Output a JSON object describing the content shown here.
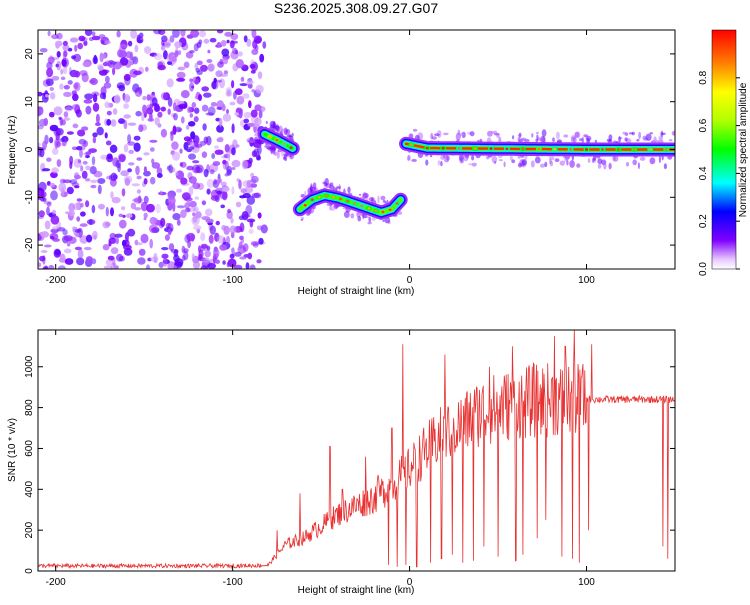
{
  "title": "S236.2025.308.09.27.G07",
  "chart_data": [
    {
      "type": "heatmap",
      "name": "spectrogram",
      "xlabel": "Height of straight line (km)",
      "ylabel": "Frequency (Hz)",
      "xlim": [
        -210,
        150
      ],
      "ylim": [
        -25,
        25
      ],
      "xticks": [
        -200,
        -100,
        0,
        100
      ],
      "yticks": [
        -20,
        -10,
        0,
        10,
        20
      ],
      "colorbar": {
        "label": "Normalized spectral amplitude",
        "range": [
          0,
          1
        ],
        "ticks": [
          0.0,
          0.2,
          0.4,
          0.6,
          0.8
        ],
        "tick_labels": [
          "0.0",
          "0.2",
          "0.4",
          "0.6",
          "0.8"
        ]
      },
      "features": [
        {
          "label": "noise region",
          "x": [
            -210,
            -82
          ],
          "freq": [
            -25,
            25
          ],
          "amplitude": 0.1
        },
        {
          "label": "segment 1",
          "points": [
            [
              -82,
              3.2
            ],
            [
              -78,
              2.5
            ],
            [
              -74,
              1.8
            ],
            [
              -70,
              1.0
            ],
            [
              -66,
              0.2
            ]
          ],
          "amplitude": 0.5
        },
        {
          "label": "segment 2",
          "points": [
            [
              -62,
              -12.5
            ],
            [
              -55,
              -10.5
            ],
            [
              -48,
              -9.6
            ],
            [
              -40,
              -10.2
            ],
            [
              -32,
              -11.2
            ],
            [
              -24,
              -12.2
            ],
            [
              -16,
              -13.2
            ],
            [
              -10,
              -12.5
            ],
            [
              -5,
              -10.5
            ]
          ],
          "amplitude": 0.55
        },
        {
          "label": "segment 3",
          "points": [
            [
              -2,
              1.2
            ],
            [
              10,
              0.3
            ],
            [
              40,
              0.2
            ],
            [
              70,
              0.1
            ],
            [
              100,
              0.0
            ],
            [
              150,
              0.0
            ]
          ],
          "amplitude": 0.95
        }
      ]
    },
    {
      "type": "line",
      "name": "snr",
      "xlabel": "Height of straight line (km)",
      "ylabel": "SNR (10 * v/v)",
      "xlim": [
        -210,
        150
      ],
      "ylim": [
        0,
        1180
      ],
      "xticks": [
        -200,
        -100,
        0,
        100
      ],
      "yticks": [
        0,
        200,
        400,
        600,
        800,
        1000
      ],
      "line_color": "#e83030",
      "profile": [
        [
          -210,
          25
        ],
        [
          -100,
          25
        ],
        [
          -80,
          28
        ],
        [
          -75,
          80
        ],
        [
          -70,
          130
        ],
        [
          -60,
          160
        ],
        [
          -50,
          220
        ],
        [
          -40,
          280
        ],
        [
          -30,
          320
        ],
        [
          -20,
          360
        ],
        [
          -10,
          420
        ],
        [
          0,
          500
        ],
        [
          10,
          600
        ],
        [
          20,
          680
        ],
        [
          30,
          720
        ],
        [
          40,
          780
        ],
        [
          50,
          800
        ],
        [
          60,
          820
        ],
        [
          70,
          830
        ],
        [
          80,
          840
        ],
        [
          90,
          840
        ],
        [
          100,
          840
        ],
        [
          110,
          840
        ],
        [
          150,
          840
        ]
      ],
      "spikes": [
        [
          -75,
          200
        ],
        [
          -62,
          380
        ],
        [
          -45,
          610
        ],
        [
          -38,
          400
        ],
        [
          -25,
          560
        ],
        [
          -18,
          470
        ],
        [
          -10,
          700
        ],
        [
          -4,
          1110
        ],
        [
          2,
          500
        ],
        [
          20,
          1060
        ],
        [
          30,
          700
        ],
        [
          45,
          1000
        ],
        [
          58,
          1100
        ],
        [
          70,
          1020
        ],
        [
          82,
          1150
        ],
        [
          88,
          1100
        ],
        [
          93,
          1180
        ],
        [
          97,
          950
        ],
        [
          103,
          1110
        ]
      ],
      "dips": [
        [
          -12,
          30
        ],
        [
          -7,
          20
        ],
        [
          -2,
          30
        ],
        [
          4,
          20
        ],
        [
          12,
          40
        ],
        [
          18,
          60
        ],
        [
          24,
          80
        ],
        [
          30,
          40
        ],
        [
          36,
          50
        ],
        [
          42,
          120
        ],
        [
          50,
          70
        ],
        [
          60,
          50
        ],
        [
          64,
          80
        ],
        [
          72,
          160
        ],
        [
          77,
          250
        ],
        [
          86,
          70
        ],
        [
          92,
          60
        ],
        [
          96,
          40
        ],
        [
          101,
          200
        ],
        [
          143,
          120
        ],
        [
          146,
          60
        ]
      ]
    }
  ]
}
